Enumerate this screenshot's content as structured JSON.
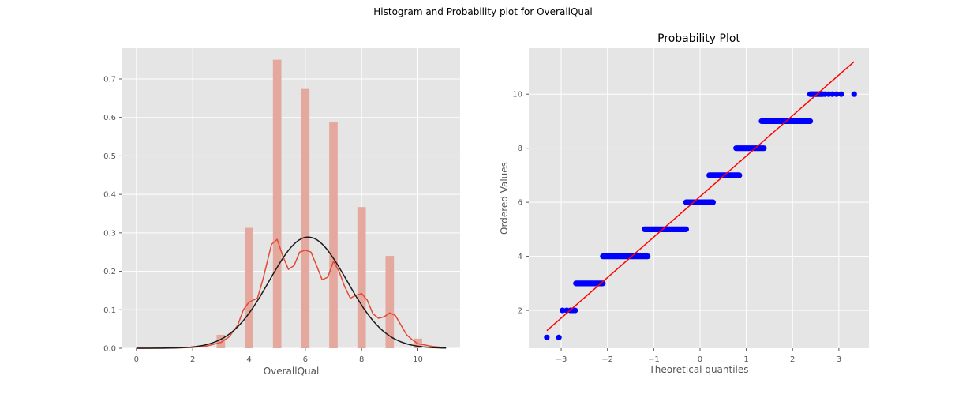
{
  "figure": {
    "suptitle": "Histogram and Probability plot for OverallQual"
  },
  "chart_data": [
    {
      "type": "bar",
      "subtype": "histogram-with-kde",
      "title": "",
      "xlabel": "OverallQual",
      "ylabel": "",
      "xlim": [
        -0.5,
        11.5
      ],
      "ylim": [
        0,
        0.78
      ],
      "xticks": [
        0,
        2,
        4,
        6,
        8,
        10
      ],
      "yticks": [
        0.0,
        0.1,
        0.2,
        0.3,
        0.4,
        0.5,
        0.6,
        0.7
      ],
      "ytick_labels": [
        "0.0",
        "0.1",
        "0.2",
        "0.3",
        "0.4",
        "0.5",
        "0.6",
        "0.7"
      ],
      "bars": [
        {
          "x": 3,
          "value": 0.035
        },
        {
          "x": 4,
          "value": 0.313
        },
        {
          "x": 5,
          "value": 0.75
        },
        {
          "x": 6,
          "value": 0.674
        },
        {
          "x": 7,
          "value": 0.587
        },
        {
          "x": 8,
          "value": 0.367
        },
        {
          "x": 9,
          "value": 0.24
        },
        {
          "x": 10,
          "value": 0.025
        }
      ],
      "bar_width": 0.3,
      "kde_curve": {
        "x": [
          0,
          1,
          2,
          2.5,
          3,
          3.3,
          3.6,
          3.8,
          4,
          4.3,
          4.5,
          4.8,
          5,
          5.2,
          5.4,
          5.6,
          5.8,
          6,
          6.2,
          6.4,
          6.6,
          6.8,
          7,
          7.2,
          7.4,
          7.6,
          7.8,
          8,
          8.2,
          8.4,
          8.6,
          8.8,
          9,
          9.2,
          9.4,
          9.6,
          9.8,
          10,
          10.5,
          11
        ],
        "y": [
          0.0,
          0.0,
          0.002,
          0.006,
          0.015,
          0.03,
          0.06,
          0.1,
          0.12,
          0.13,
          0.18,
          0.27,
          0.283,
          0.24,
          0.205,
          0.215,
          0.25,
          0.255,
          0.25,
          0.215,
          0.178,
          0.185,
          0.226,
          0.2,
          0.16,
          0.13,
          0.138,
          0.142,
          0.125,
          0.09,
          0.078,
          0.082,
          0.092,
          0.085,
          0.06,
          0.035,
          0.022,
          0.012,
          0.005,
          0.001
        ]
      },
      "normal_curve": {
        "mean": 6.1,
        "std": 1.38,
        "xrange": [
          0,
          11
        ]
      },
      "colors": {
        "bars": "#e5a89e",
        "kde": "#e24a33",
        "normal": "#1a1a1a"
      }
    },
    {
      "type": "scatter",
      "subtype": "probability-plot",
      "title": "Probability Plot",
      "xlabel": "Theoretical quantiles",
      "ylabel": "Ordered Values",
      "xlim": [
        -3.7,
        3.65
      ],
      "ylim": [
        0.6,
        11.7
      ],
      "xticks": [
        -3,
        -2,
        -1,
        0,
        1,
        2,
        3
      ],
      "xtick_labels": [
        "−3",
        "−2",
        "−1",
        "0",
        "1",
        "2",
        "3"
      ],
      "yticks": [
        2,
        4,
        6,
        8,
        10
      ],
      "segments": [
        {
          "y": 1,
          "points": [
            -3.31,
            -3.05
          ]
        },
        {
          "y": 2,
          "points": [
            -2.97,
            -2.88,
            -2.8,
            -2.75,
            -2.7
          ]
        },
        {
          "from": -2.68,
          "to": -2.1,
          "y": 3
        },
        {
          "from": -2.1,
          "to": -1.13,
          "y": 4
        },
        {
          "from": -1.2,
          "to": -0.3,
          "y": 5
        },
        {
          "from": -0.3,
          "to": 0.28,
          "y": 6
        },
        {
          "from": 0.2,
          "to": 0.85,
          "y": 7
        },
        {
          "from": 0.78,
          "to": 1.38,
          "y": 8
        },
        {
          "from": 1.33,
          "to": 2.38,
          "y": 9
        },
        {
          "from": 2.38,
          "to": 2.65,
          "y": 10,
          "extra_points": [
            2.7,
            2.78,
            2.86,
            2.95,
            3.05,
            3.33
          ]
        }
      ],
      "fit_line": {
        "x": [
          -3.31,
          3.33
        ],
        "y": [
          1.25,
          11.2
        ]
      },
      "colors": {
        "points": "#0000ff",
        "fit": "#ff0000"
      }
    }
  ]
}
